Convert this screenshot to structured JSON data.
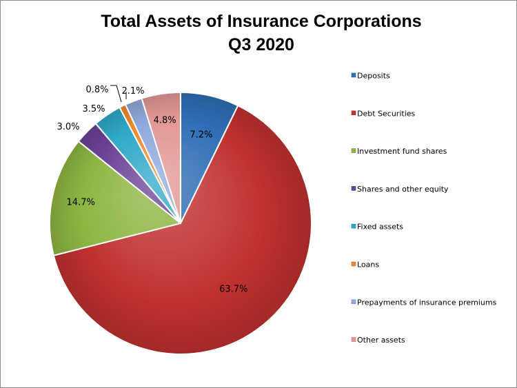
{
  "chart_data": {
    "type": "pie",
    "title": "Total Assets of Insurance Corporations",
    "subtitle": "Q3 2020",
    "legend_position": "right",
    "slices": [
      {
        "label": "Deposits",
        "value": 7.2,
        "display": "7.2%",
        "color": "#2f6db5"
      },
      {
        "label": "Debt Securities",
        "value": 63.7,
        "display": "63.7%",
        "color": "#c0312f"
      },
      {
        "label": "Investment fund shares",
        "value": 14.7,
        "display": "14.7%",
        "color": "#8db542"
      },
      {
        "label": "Shares and other equity",
        "value": 3.0,
        "display": "3.0%",
        "color": "#6a4296"
      },
      {
        "label": "Fixed assets",
        "value": 3.5,
        "display": "3.5%",
        "color": "#2fa8c8"
      },
      {
        "label": "Loans",
        "value": 0.8,
        "display": "0.8%",
        "color": "#f0892e"
      },
      {
        "label": "Prepayments of insurance premiums",
        "value": 2.1,
        "display": "2.1%",
        "color": "#90a9dc"
      },
      {
        "label": "Other assets",
        "value": 4.8,
        "display": "4.8%",
        "color": "#e29896"
      }
    ]
  }
}
